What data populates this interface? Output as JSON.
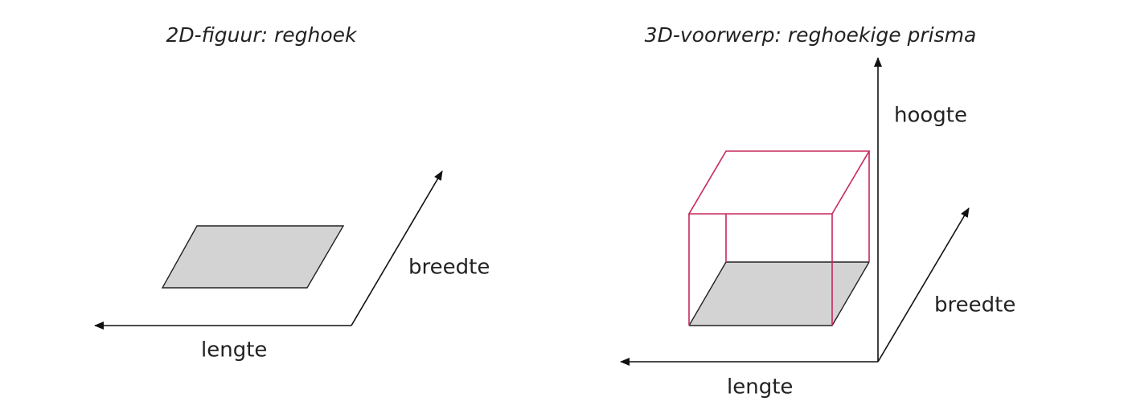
{
  "left": {
    "title": "2D-figuur: reghoek",
    "width_label": "breedte",
    "length_label": "lengte"
  },
  "right": {
    "title": "3D-voorwerp: reghoekige prisma",
    "height_label": "hoogte",
    "width_label": "breedte",
    "length_label": "lengte"
  }
}
